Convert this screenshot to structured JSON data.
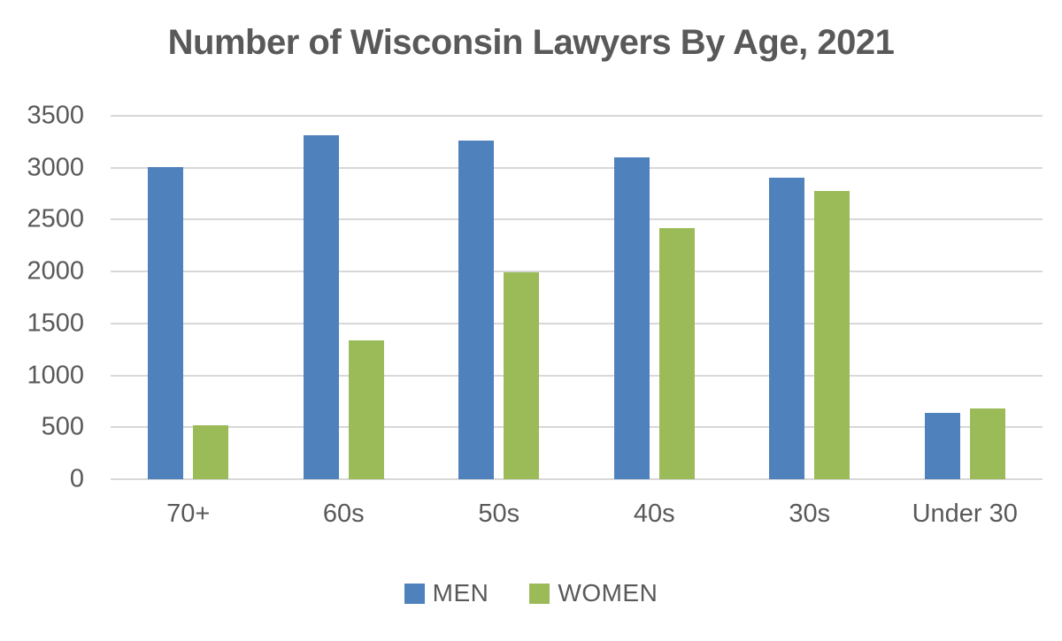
{
  "chart_data": {
    "type": "bar",
    "title": "Number of Wisconsin Lawyers By Age, 2021",
    "categories": [
      "70+",
      "60s",
      "50s",
      "40s",
      "30s",
      "Under 30"
    ],
    "series": [
      {
        "name": "MEN",
        "color": "#4F81BD",
        "values": [
          3010,
          3310,
          3260,
          3100,
          2900,
          640
        ]
      },
      {
        "name": "WOMEN",
        "color": "#9BBB59",
        "values": [
          520,
          1340,
          1990,
          2420,
          2780,
          680
        ]
      }
    ],
    "ylim": [
      0,
      3500
    ],
    "ytick_step": 500,
    "ytick_labels": [
      "0",
      "500",
      "1000",
      "1500",
      "2000",
      "2500",
      "3000",
      "3500"
    ],
    "grid": true,
    "legend_position": "bottom"
  },
  "colors": {
    "background": "#FFFFFF",
    "title_text": "#595959",
    "axis_text": "#595959",
    "gridline": "#D8D8D8"
  }
}
